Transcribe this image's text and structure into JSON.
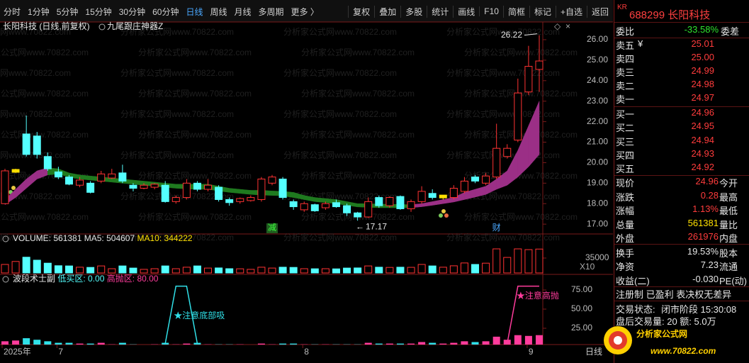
{
  "toolbar": {
    "periods": [
      "分时",
      "1分钟",
      "5分钟",
      "15分钟",
      "30分钟",
      "60分钟",
      "日线",
      "周线",
      "月线",
      "多周期",
      "更多 〉"
    ],
    "active": "日线",
    "tools": [
      "复权",
      "叠加",
      "多股",
      "统计",
      "画线",
      "F10",
      "简框",
      "标记",
      "+自选",
      "返回"
    ]
  },
  "stock_header": {
    "name": "长阳科技 (日线,前复权)",
    "indicator": "九尾跟庄神器Z"
  },
  "watermark": "分析家公式网www.70822.com",
  "main_chart": {
    "type": "candlestick",
    "up_color": "#ff3232",
    "down_color": "#54ffff",
    "flat_color": "#ffe000",
    "band_up_color": "#9b2f86",
    "band_down_color": "#1f7a1f",
    "ylim": [
      16.59,
      26.76
    ],
    "yticks": [
      {
        "value": 26,
        "label": "26.00"
      },
      {
        "value": 25,
        "label": "25.00"
      },
      {
        "value": 24,
        "label": "24.00"
      },
      {
        "value": 23,
        "label": "23.00"
      },
      {
        "value": 22,
        "label": "22.00"
      },
      {
        "value": 21,
        "label": "21.00"
      },
      {
        "value": 20,
        "label": "20.00"
      },
      {
        "value": 19,
        "label": "19.00"
      },
      {
        "value": 18,
        "label": "18.00"
      },
      {
        "value": 17,
        "label": "17.00"
      }
    ],
    "candles": [
      [
        18.0,
        19.7,
        18.0,
        19.6
      ],
      [
        19.6,
        19.7,
        19.5,
        19.6
      ],
      [
        21.4,
        22.3,
        20.3,
        20.4
      ],
      [
        21.3,
        21.5,
        20.2,
        20.4
      ],
      [
        20.3,
        20.5,
        19.6,
        19.7
      ],
      [
        19.55,
        19.8,
        19.2,
        19.3
      ],
      [
        19.3,
        19.4,
        18.9,
        18.95
      ],
      [
        18.9,
        19.3,
        18.8,
        19.15
      ],
      [
        19.0,
        19.1,
        18.5,
        18.55
      ],
      [
        19.1,
        19.6,
        19.0,
        19.45
      ],
      [
        19.25,
        19.7,
        19.2,
        19.45
      ],
      [
        19.5,
        19.9,
        19.0,
        19.1
      ],
      [
        18.9,
        19.0,
        18.6,
        18.75
      ],
      [
        18.75,
        19.0,
        18.7,
        18.9
      ],
      [
        18.8,
        19.0,
        18.7,
        18.95
      ],
      [
        18.9,
        19.1,
        18.05,
        18.1
      ],
      [
        18.1,
        18.4,
        18.0,
        18.3
      ],
      [
        18.3,
        19.2,
        18.2,
        19.0
      ],
      [
        19.0,
        19.1,
        18.6,
        18.7
      ],
      [
        18.7,
        19.2,
        18.6,
        18.9
      ],
      [
        18.8,
        18.9,
        18.1,
        18.2
      ],
      [
        18.2,
        18.3,
        17.9,
        18.05
      ],
      [
        18.1,
        18.3,
        18.0,
        18.25
      ],
      [
        18.15,
        18.4,
        18.1,
        18.3
      ],
      [
        18.2,
        19.3,
        18.1,
        19.2
      ],
      [
        19.0,
        19.4,
        18.9,
        19.3
      ],
      [
        19.2,
        19.3,
        18.2,
        18.3
      ],
      [
        18.1,
        18.2,
        17.7,
        17.85
      ],
      [
        17.7,
        18.1,
        17.6,
        18.0
      ],
      [
        17.95,
        18.0,
        17.6,
        17.65
      ],
      [
        17.8,
        18.1,
        17.7,
        18.0
      ],
      [
        18.05,
        18.2,
        17.8,
        17.85
      ],
      [
        17.9,
        18.0,
        17.4,
        17.55
      ],
      [
        17.55,
        17.6,
        17.17,
        17.35
      ],
      [
        17.35,
        18.3,
        17.3,
        18.1
      ],
      [
        18.3,
        18.4,
        17.8,
        17.9
      ],
      [
        17.9,
        18.35,
        17.8,
        18.3
      ],
      [
        18.35,
        18.4,
        17.7,
        17.75
      ],
      [
        17.75,
        18.2,
        17.6,
        18.1
      ],
      [
        18.1,
        18.85,
        18.0,
        18.6
      ],
      [
        18.5,
        18.7,
        18.2,
        18.3
      ],
      [
        18.35,
        18.4,
        18.2,
        18.35
      ],
      [
        18.3,
        18.9,
        18.2,
        18.75
      ],
      [
        18.6,
        19.3,
        18.5,
        19.1
      ],
      [
        19.3,
        19.4,
        19.0,
        19.1
      ],
      [
        19.0,
        19.5,
        18.9,
        19.35
      ],
      [
        19.3,
        21.9,
        19.2,
        20.7
      ],
      [
        20.3,
        20.9,
        20.2,
        20.7
      ],
      [
        21.1,
        24.1,
        21.0,
        23.4
      ],
      [
        23.45,
        25.7,
        23.3,
        24.7
      ],
      [
        24.55,
        26.22,
        23.45,
        24.96
      ]
    ],
    "band": {
      "top": [
        18.2,
        18.7,
        19.2,
        19.6,
        19.75,
        19.7,
        19.5,
        19.4,
        19.35,
        19.3,
        19.25,
        19.2,
        19.15,
        19.1,
        19.05,
        19.0,
        18.95,
        18.95,
        18.95,
        18.95,
        18.85,
        18.75,
        18.7,
        18.65,
        18.65,
        18.62,
        18.6,
        18.55,
        18.4,
        18.3,
        18.25,
        18.2,
        18.1,
        18.0,
        18.0,
        17.98,
        17.97,
        17.96,
        17.95,
        18.0,
        18.1,
        18.2,
        18.3,
        18.55,
        18.7,
        18.85,
        19.2,
        19.6,
        20.6,
        21.8,
        23.0
      ],
      "bottom": [
        17.95,
        18.3,
        18.75,
        19.2,
        19.4,
        19.45,
        19.3,
        19.2,
        19.15,
        19.1,
        19.05,
        19.0,
        18.95,
        18.9,
        18.85,
        18.8,
        18.75,
        18.72,
        18.7,
        18.7,
        18.62,
        18.55,
        18.5,
        18.45,
        18.42,
        18.4,
        18.38,
        18.3,
        18.2,
        18.1,
        18.05,
        18.0,
        17.92,
        17.84,
        17.82,
        17.8,
        17.8,
        17.8,
        17.8,
        17.85,
        17.92,
        18.0,
        18.08,
        18.2,
        18.32,
        18.45,
        18.7,
        18.9,
        19.3,
        19.8,
        20.4
      ]
    },
    "high_label": 26.22,
    "low_label": 17.17,
    "signals": [
      null,
      null,
      null,
      null,
      null,
      null,
      null,
      null,
      null,
      null,
      null,
      null,
      null,
      null,
      null,
      null,
      null,
      null,
      null,
      null,
      null,
      null,
      null,
      null,
      null,
      "减",
      null,
      null,
      null,
      null,
      null,
      null,
      null,
      null,
      null,
      null,
      null,
      null,
      null,
      null,
      null,
      null,
      null,
      null,
      null,
      null,
      "财",
      null,
      null,
      null,
      null
    ],
    "x_labels": [
      "2025年",
      null,
      null,
      null,
      null,
      "7",
      null,
      null,
      null,
      null,
      null,
      null,
      null,
      null,
      null,
      null,
      null,
      null,
      null,
      null,
      null,
      null,
      null,
      null,
      null,
      null,
      null,
      null,
      "8",
      null,
      null,
      null,
      null,
      null,
      null,
      null,
      null,
      null,
      null,
      null,
      null,
      null,
      null,
      null,
      null,
      null,
      null,
      null,
      null,
      "9",
      null
    ],
    "period_label": "日线"
  },
  "volume": {
    "label": "VOLUME:",
    "total": 561381,
    "ma5_label": "MA5:",
    "ma5": 504607,
    "ma10_label": "MA10:",
    "ma10": 344222,
    "ylim": [
      0,
      666000
    ],
    "yticks": [
      {
        "value": 350000,
        "label": "35000"
      }
    ],
    "unit": "X10",
    "values": [
      200000,
      270000,
      370000,
      300000,
      230000,
      170000,
      165000,
      135000,
      130000,
      165000,
      100000,
      165000,
      115000,
      85000,
      100000,
      165000,
      100000,
      135000,
      165000,
      115000,
      118000,
      100000,
      98000,
      85000,
      135000,
      115000,
      135000,
      130000,
      100000,
      98000,
      100000,
      96000,
      115000,
      118000,
      165000,
      135000,
      130000,
      135000,
      132000,
      200000,
      165000,
      135000,
      168000,
      235000,
      200000,
      230000,
      566000,
      365000,
      566000,
      548000,
      561381
    ]
  },
  "indicator": {
    "title": "波段术士副",
    "low_label": "低买区:",
    "low": "0.00",
    "high_label": "高抛区:",
    "high": "80.00",
    "ylim": [
      0,
      83.33
    ],
    "yticks": [
      {
        "value": 75,
        "label": "75.00"
      },
      {
        "value": 50,
        "label": "50.00"
      },
      {
        "value": 25,
        "label": "25.00"
      }
    ],
    "bars": [
      8,
      9,
      12,
      10,
      8,
      6,
      6,
      5,
      5,
      6,
      4,
      6,
      4,
      3,
      4,
      6,
      4,
      5,
      6,
      4,
      4,
      4,
      4,
      3,
      5,
      4,
      5,
      5,
      4,
      4,
      4,
      4,
      4,
      4,
      6,
      5,
      5,
      5,
      5,
      7,
      6,
      5,
      6,
      8,
      7,
      8,
      14,
      10,
      16,
      15,
      16
    ],
    "low_signal": [
      null,
      null,
      null,
      null,
      null,
      null,
      null,
      null,
      null,
      null,
      null,
      null,
      null,
      null,
      null,
      5,
      80,
      80,
      5,
      null,
      null,
      null,
      null,
      null,
      null,
      null,
      null,
      null,
      null,
      null,
      null,
      null,
      null,
      null,
      null,
      null,
      null,
      null,
      null,
      null,
      null,
      null,
      null,
      null,
      null,
      null,
      null,
      null,
      null,
      null,
      null
    ],
    "high_signal": [
      null,
      null,
      null,
      null,
      null,
      null,
      null,
      null,
      null,
      null,
      null,
      null,
      null,
      null,
      null,
      null,
      null,
      null,
      null,
      null,
      null,
      null,
      null,
      null,
      null,
      null,
      null,
      null,
      null,
      null,
      null,
      null,
      null,
      null,
      null,
      null,
      null,
      null,
      null,
      null,
      null,
      null,
      null,
      null,
      null,
      null,
      null,
      5,
      80,
      80,
      80
    ],
    "low_note": "★注意底部吸",
    "high_note": "★注意高抛"
  },
  "quote": {
    "badge": "KR",
    "title": "688299 长阳科技",
    "ratio": {
      "label": "委比",
      "value": "-33.58%",
      "label2": "委差"
    },
    "ask_symbol": "¥",
    "asks": [
      {
        "label": "卖五",
        "price": "25.01"
      },
      {
        "label": "卖四",
        "price": "25.00"
      },
      {
        "label": "卖三",
        "price": "24.99"
      },
      {
        "label": "卖二",
        "price": "24.98"
      },
      {
        "label": "卖一",
        "price": "24.97"
      }
    ],
    "bids": [
      {
        "label": "买一",
        "price": "24.96"
      },
      {
        "label": "买二",
        "price": "24.95"
      },
      {
        "label": "买三",
        "price": "24.94"
      },
      {
        "label": "买四",
        "price": "24.93"
      },
      {
        "label": "买五",
        "price": "24.92"
      }
    ],
    "stats": [
      {
        "label": "现价",
        "value": "24.96",
        "label2": "今开",
        "color": "#ff3c3c"
      },
      {
        "label": "涨跌",
        "value": "0.28",
        "label2": "最高",
        "color": "#ff3c3c"
      },
      {
        "label": "涨幅",
        "value": "1.13%",
        "label2": "最低",
        "color": "#ff3c3c"
      },
      {
        "label": "总量",
        "value": "561381",
        "label2": "量比",
        "color": "#ffe000"
      },
      {
        "label": "外盘",
        "value": "261976",
        "label2": "内盘",
        "color": "#ff3c3c"
      },
      {
        "label": "换手",
        "value": "19.53%",
        "label2": "股本",
        "color": "#e6e6e6"
      },
      {
        "label": "净资",
        "value": "7.23",
        "label2": "流通",
        "color": "#e6e6e6"
      },
      {
        "label": "收益(二)",
        "value": "-0.030",
        "label2": "PE(动)",
        "color": "#e6e6e6"
      }
    ],
    "tags": "注册制 已盈利 表决权无差异",
    "status_label": "交易状态:",
    "status": "闭市阶段 15:30:08",
    "after_hours": "盘后交易量: 20  额: 5.0万"
  },
  "logo": {
    "name": "分析家公式网",
    "url": "www.70822.com"
  }
}
